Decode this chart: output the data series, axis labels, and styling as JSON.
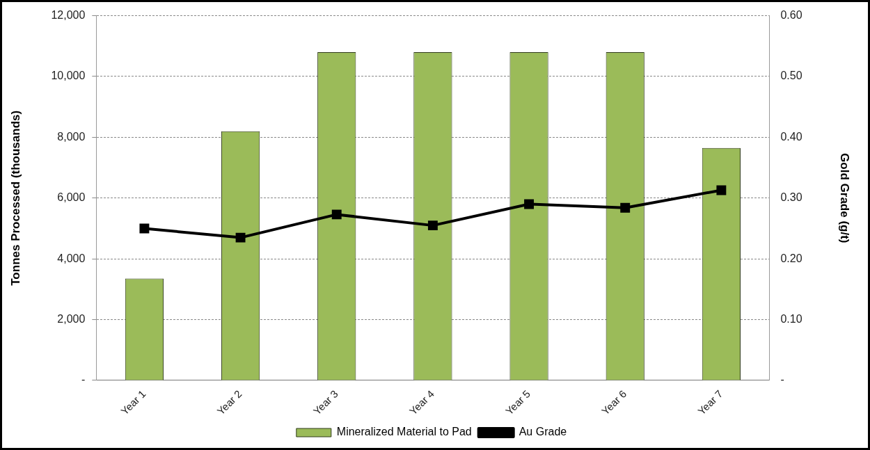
{
  "chart_data": {
    "type": "bar",
    "ylabel": "Tonnes Processed (thousands)",
    "y2label": "Gold Grade (g/t)",
    "categories": [
      "Year 1",
      "Year 2",
      "Year 3",
      "Year 4",
      "Year 5",
      "Year 6",
      "Year 7"
    ],
    "series": [
      {
        "name": "Mineralized Material to Pad",
        "color": "#9bbb59",
        "values": [
          3350,
          8200,
          10800,
          10800,
          10800,
          10800,
          7650
        ]
      },
      {
        "name": "Au Grade",
        "type": "line",
        "axis": "y2",
        "color": "#000000",
        "marker": "square",
        "values": [
          0.25,
          0.235,
          0.273,
          0.255,
          0.29,
          0.284,
          0.313
        ]
      }
    ],
    "ylim": [
      0,
      12000
    ],
    "yticks": [
      {
        "value": 0,
        "label": "-"
      },
      {
        "value": 2000,
        "label": "2,000"
      },
      {
        "value": 4000,
        "label": "4,000"
      },
      {
        "value": 6000,
        "label": "6,000"
      },
      {
        "value": 8000,
        "label": "8,000"
      },
      {
        "value": 10000,
        "label": "10,000"
      },
      {
        "value": 12000,
        "label": "12,000"
      }
    ],
    "y2lim": [
      0,
      0.6
    ],
    "y2ticks": [
      {
        "value": 0,
        "label": "-"
      },
      {
        "value": 0.1,
        "label": "0.10"
      },
      {
        "value": 0.2,
        "label": "0.20"
      },
      {
        "value": 0.3,
        "label": "0.30"
      },
      {
        "value": 0.4,
        "label": "0.40"
      },
      {
        "value": 0.5,
        "label": "0.50"
      },
      {
        "value": 0.6,
        "label": "0.60"
      }
    ],
    "grid": "y",
    "legend": "bottom"
  }
}
